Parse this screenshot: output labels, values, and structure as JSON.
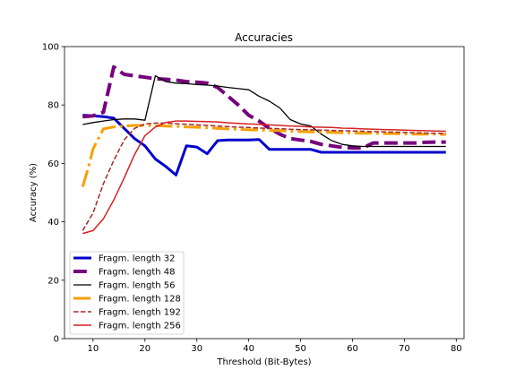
{
  "chart_data": {
    "type": "line",
    "title": "Accuracies",
    "xlabel": "Threshold (Bit-Bytes)",
    "ylabel": "Accuracy (%)",
    "xlim": [
      4.5,
      81.5
    ],
    "ylim": [
      0,
      100
    ],
    "xticks": [
      "10",
      "20",
      "30",
      "40",
      "50",
      "60",
      "70",
      "80"
    ],
    "yticks": [
      "0",
      "20",
      "40",
      "60",
      "80",
      "100"
    ],
    "grid": false,
    "legend_position": "lower-left",
    "series": [
      {
        "name": "Fragm. length 32",
        "color": "#0000cc",
        "style": "solid",
        "width": 3,
        "points": [
          [
            8,
            76.5
          ],
          [
            10,
            76.3
          ],
          [
            12,
            76.0
          ],
          [
            14,
            75.5
          ],
          [
            16,
            72.0
          ],
          [
            18,
            68.5
          ],
          [
            20,
            66.0
          ],
          [
            22,
            61.5
          ],
          [
            24,
            59.0
          ],
          [
            26,
            56.0
          ],
          [
            28,
            66.0
          ],
          [
            30,
            65.6
          ],
          [
            32,
            63.3
          ],
          [
            34,
            67.8
          ],
          [
            36,
            68.0
          ],
          [
            38,
            68.0
          ],
          [
            40,
            68.0
          ],
          [
            42,
            68.2
          ],
          [
            44,
            64.8
          ],
          [
            46,
            64.8
          ],
          [
            48,
            64.8
          ],
          [
            50,
            64.8
          ],
          [
            52,
            64.8
          ],
          [
            54,
            63.8
          ],
          [
            56,
            63.8
          ],
          [
            58,
            63.8
          ],
          [
            60,
            63.8
          ],
          [
            62,
            63.8
          ],
          [
            64,
            63.8
          ],
          [
            66,
            63.8
          ],
          [
            68,
            63.8
          ],
          [
            70,
            63.8
          ],
          [
            72,
            63.8
          ],
          [
            74,
            63.8
          ],
          [
            76,
            63.8
          ],
          [
            78,
            63.8
          ]
        ]
      },
      {
        "name": "Fragm. length 48",
        "color": "#76007c",
        "style": "dashed",
        "width": 4,
        "points": [
          [
            8,
            76.0
          ],
          [
            10,
            76.3
          ],
          [
            12,
            77.5
          ],
          [
            14,
            93.0
          ],
          [
            16,
            90.5
          ],
          [
            18,
            90.0
          ],
          [
            20,
            89.5
          ],
          [
            22,
            89.0
          ],
          [
            24,
            88.8
          ],
          [
            26,
            88.5
          ],
          [
            28,
            88.0
          ],
          [
            30,
            87.8
          ],
          [
            32,
            87.5
          ],
          [
            34,
            86.0
          ],
          [
            36,
            83.0
          ],
          [
            38,
            80.0
          ],
          [
            40,
            76.5
          ],
          [
            42,
            74.5
          ],
          [
            44,
            72.0
          ],
          [
            46,
            70.0
          ],
          [
            48,
            68.5
          ],
          [
            50,
            68.0
          ],
          [
            52,
            67.5
          ],
          [
            54,
            66.5
          ],
          [
            56,
            66.0
          ],
          [
            58,
            65.5
          ],
          [
            60,
            65.3
          ],
          [
            62,
            65.3
          ],
          [
            64,
            67.0
          ],
          [
            66,
            67.0
          ],
          [
            68,
            67.0
          ],
          [
            70,
            67.0
          ],
          [
            72,
            67.0
          ],
          [
            74,
            67.2
          ],
          [
            76,
            67.3
          ],
          [
            78,
            67.3
          ]
        ]
      },
      {
        "name": "Fragm. length 56",
        "color": "#000000",
        "style": "solid",
        "width": 1.3,
        "points": [
          [
            8,
            73.3
          ],
          [
            10,
            74.0
          ],
          [
            12,
            74.5
          ],
          [
            14,
            75.0
          ],
          [
            16,
            75.2
          ],
          [
            18,
            75.2
          ],
          [
            20,
            74.8
          ],
          [
            22,
            90.0
          ],
          [
            24,
            88.0
          ],
          [
            26,
            87.5
          ],
          [
            28,
            87.3
          ],
          [
            30,
            87.0
          ],
          [
            32,
            86.8
          ],
          [
            34,
            86.5
          ],
          [
            36,
            86.0
          ],
          [
            38,
            85.6
          ],
          [
            40,
            85.2
          ],
          [
            42,
            83.0
          ],
          [
            44,
            81.3
          ],
          [
            46,
            79.0
          ],
          [
            48,
            75.0
          ],
          [
            50,
            73.5
          ],
          [
            52,
            72.8
          ],
          [
            54,
            70.0
          ],
          [
            56,
            67.8
          ],
          [
            58,
            66.5
          ],
          [
            60,
            66.0
          ],
          [
            62,
            65.8
          ],
          [
            64,
            65.8
          ],
          [
            66,
            65.8
          ],
          [
            68,
            65.8
          ],
          [
            70,
            65.8
          ],
          [
            72,
            65.8
          ],
          [
            74,
            65.8
          ],
          [
            76,
            65.8
          ],
          [
            78,
            65.8
          ]
        ]
      },
      {
        "name": "Fragm. length 128",
        "color": "#f5a000",
        "style": "dashdot",
        "width": 3,
        "points": [
          [
            8,
            52.0
          ],
          [
            9,
            58.0
          ],
          [
            10,
            65.0
          ],
          [
            12,
            71.8
          ],
          [
            14,
            72.5
          ],
          [
            16,
            72.8
          ],
          [
            18,
            73.0
          ],
          [
            20,
            73.0
          ],
          [
            22,
            72.9
          ],
          [
            24,
            72.8
          ],
          [
            26,
            72.7
          ],
          [
            28,
            72.5
          ],
          [
            30,
            72.4
          ],
          [
            32,
            72.2
          ],
          [
            34,
            72.0
          ],
          [
            36,
            71.8
          ],
          [
            38,
            71.7
          ],
          [
            40,
            71.5
          ],
          [
            42,
            71.4
          ],
          [
            44,
            71.3
          ],
          [
            46,
            71.2
          ],
          [
            48,
            71.0
          ],
          [
            50,
            70.9
          ],
          [
            52,
            70.8
          ],
          [
            54,
            70.7
          ],
          [
            56,
            70.6
          ],
          [
            58,
            70.5
          ],
          [
            60,
            70.4
          ],
          [
            62,
            70.3
          ],
          [
            64,
            70.3
          ],
          [
            66,
            70.2
          ],
          [
            68,
            70.2
          ],
          [
            70,
            70.1
          ],
          [
            72,
            70.0
          ],
          [
            74,
            70.0
          ],
          [
            76,
            70.0
          ],
          [
            78,
            69.9
          ]
        ]
      },
      {
        "name": "Fragm. length 192",
        "color": "#a52a2a",
        "style": "dashed",
        "width": 1.5,
        "points": [
          [
            8,
            37.0
          ],
          [
            10,
            43.0
          ],
          [
            12,
            53.0
          ],
          [
            14,
            61.0
          ],
          [
            16,
            68.0
          ],
          [
            18,
            72.0
          ],
          [
            20,
            73.5
          ],
          [
            22,
            73.8
          ],
          [
            24,
            73.8
          ],
          [
            26,
            73.6
          ],
          [
            28,
            73.4
          ],
          [
            30,
            73.2
          ],
          [
            32,
            73.0
          ],
          [
            34,
            72.8
          ],
          [
            36,
            72.6
          ],
          [
            38,
            72.4
          ],
          [
            40,
            72.3
          ],
          [
            42,
            72.1
          ],
          [
            44,
            72.0
          ],
          [
            46,
            71.9
          ],
          [
            48,
            71.7
          ],
          [
            50,
            71.6
          ],
          [
            52,
            71.5
          ],
          [
            54,
            71.4
          ],
          [
            56,
            71.3
          ],
          [
            58,
            71.2
          ],
          [
            60,
            71.1
          ],
          [
            62,
            71.0
          ],
          [
            64,
            70.9
          ],
          [
            66,
            70.8
          ],
          [
            68,
            70.7
          ],
          [
            70,
            70.6
          ],
          [
            72,
            70.5
          ],
          [
            74,
            70.4
          ],
          [
            76,
            70.3
          ],
          [
            78,
            70.2
          ]
        ]
      },
      {
        "name": "Fragm. length 256",
        "color": "#d62020",
        "style": "solid",
        "width": 1.5,
        "points": [
          [
            8,
            36.0
          ],
          [
            10,
            37.0
          ],
          [
            12,
            41.0
          ],
          [
            14,
            47.5
          ],
          [
            16,
            55.0
          ],
          [
            18,
            63.0
          ],
          [
            20,
            69.5
          ],
          [
            22,
            72.5
          ],
          [
            24,
            74.0
          ],
          [
            26,
            74.5
          ],
          [
            28,
            74.5
          ],
          [
            30,
            74.4
          ],
          [
            32,
            74.3
          ],
          [
            34,
            74.2
          ],
          [
            36,
            73.9
          ],
          [
            38,
            73.7
          ],
          [
            40,
            73.5
          ],
          [
            42,
            73.4
          ],
          [
            44,
            73.2
          ],
          [
            46,
            73.0
          ],
          [
            48,
            72.8
          ],
          [
            50,
            72.7
          ],
          [
            52,
            72.5
          ],
          [
            54,
            72.4
          ],
          [
            56,
            72.3
          ],
          [
            58,
            72.1
          ],
          [
            60,
            72.0
          ],
          [
            62,
            71.8
          ],
          [
            64,
            71.7
          ],
          [
            66,
            71.6
          ],
          [
            68,
            71.5
          ],
          [
            70,
            71.4
          ],
          [
            72,
            71.3
          ],
          [
            74,
            71.2
          ],
          [
            76,
            71.1
          ],
          [
            78,
            71.0
          ]
        ]
      }
    ]
  }
}
